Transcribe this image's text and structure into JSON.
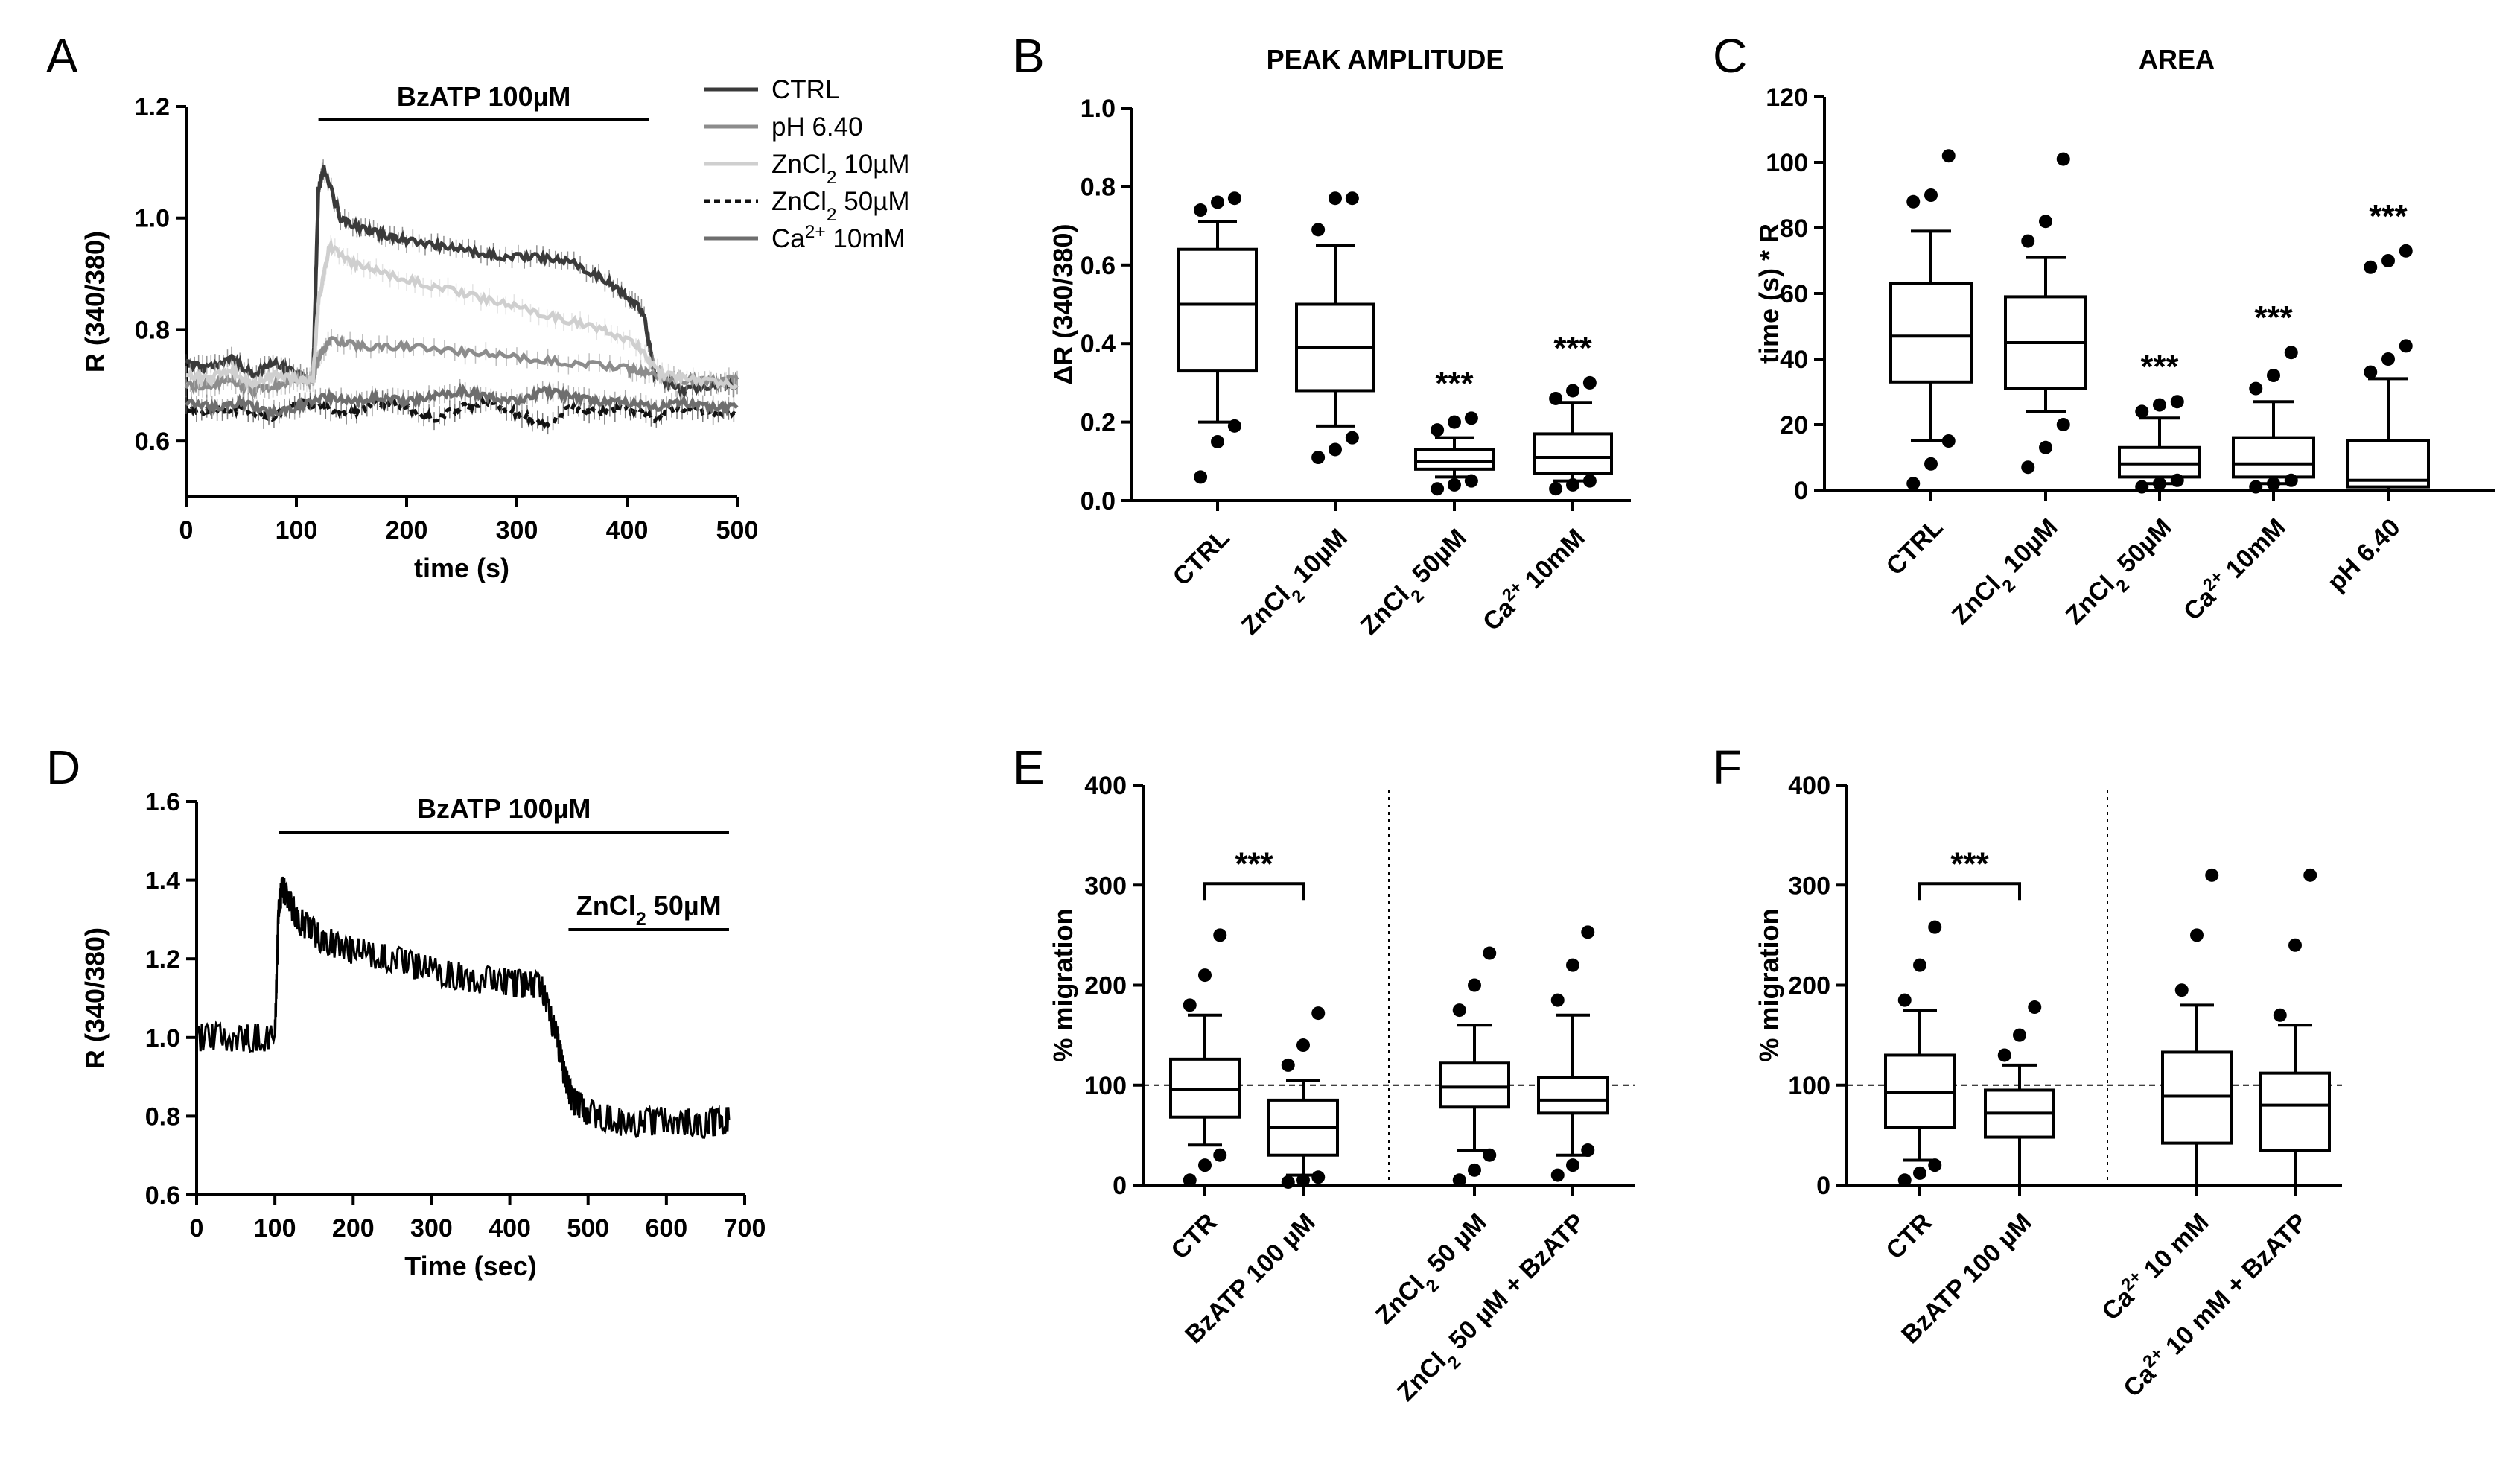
{
  "chart_data": [
    {
      "panel": "A",
      "type": "line",
      "xlabel": "time (s)",
      "ylabel": "R (340/380)",
      "xlim": [
        0,
        500
      ],
      "ylim": [
        0.5,
        1.2
      ],
      "xticks": [
        "0",
        "100",
        "200",
        "300",
        "400",
        "500"
      ],
      "yticks": [
        "0.6",
        "0.8",
        "1.0",
        "1.2"
      ],
      "annotation": "BzATP 100µM",
      "annotation_range": [
        120,
        420
      ],
      "legend": [
        "CTRL",
        "pH 6.40",
        "ZnCl2 10µM",
        "ZnCl2 50µM",
        "Ca2+ 10mM"
      ],
      "series": [
        {
          "name": "CTRL",
          "color": "#3a3a3a",
          "x": [
            0,
            20,
            40,
            60,
            80,
            100,
            115,
            120,
            125,
            140,
            160,
            180,
            200,
            230,
            260,
            290,
            320,
            350,
            380,
            400,
            415,
            425,
            450,
            480,
            500
          ],
          "y": [
            0.74,
            0.73,
            0.75,
            0.72,
            0.74,
            0.72,
            0.71,
            1.05,
            1.09,
            1.0,
            0.98,
            0.97,
            0.96,
            0.95,
            0.94,
            0.93,
            0.93,
            0.92,
            0.89,
            0.86,
            0.83,
            0.72,
            0.69,
            0.7,
            0.7
          ]
        },
        {
          "name": "pH 6.40",
          "color": "#8c8c8c",
          "x": [
            0,
            20,
            40,
            60,
            80,
            100,
            115,
            120,
            130,
            160,
            200,
            250,
            300,
            350,
            400,
            420,
            450,
            480,
            500
          ],
          "y": [
            0.7,
            0.7,
            0.71,
            0.69,
            0.7,
            0.71,
            0.71,
            0.75,
            0.78,
            0.77,
            0.77,
            0.76,
            0.75,
            0.74,
            0.73,
            0.72,
            0.71,
            0.71,
            0.71
          ]
        },
        {
          "name": "ZnCl2 10µM",
          "color": "#cfcfcf",
          "x": [
            0,
            20,
            40,
            60,
            80,
            100,
            115,
            120,
            130,
            150,
            180,
            220,
            260,
            300,
            340,
            380,
            410,
            430,
            460,
            500
          ],
          "y": [
            0.72,
            0.71,
            0.73,
            0.7,
            0.72,
            0.71,
            0.71,
            0.85,
            0.95,
            0.92,
            0.9,
            0.88,
            0.86,
            0.84,
            0.82,
            0.8,
            0.77,
            0.72,
            0.71,
            0.7
          ]
        },
        {
          "name": "ZnCl2 50µM",
          "color": "#111111",
          "dashed": true,
          "x": [
            0,
            25,
            50,
            75,
            100,
            125,
            150,
            175,
            200,
            225,
            250,
            275,
            300,
            325,
            350,
            375,
            400,
            425,
            450,
            475,
            500
          ],
          "y": [
            0.66,
            0.65,
            0.66,
            0.64,
            0.67,
            0.66,
            0.65,
            0.67,
            0.66,
            0.64,
            0.66,
            0.67,
            0.65,
            0.63,
            0.66,
            0.65,
            0.66,
            0.64,
            0.66,
            0.65,
            0.65
          ]
        },
        {
          "name": "Ca2+ 10mM",
          "color": "#6e6e6e",
          "x": [
            0,
            25,
            50,
            75,
            100,
            125,
            150,
            175,
            200,
            225,
            250,
            275,
            300,
            325,
            350,
            375,
            400,
            425,
            450,
            475,
            500
          ],
          "y": [
            0.67,
            0.66,
            0.67,
            0.65,
            0.66,
            0.68,
            0.67,
            0.68,
            0.67,
            0.68,
            0.69,
            0.68,
            0.67,
            0.69,
            0.68,
            0.67,
            0.67,
            0.66,
            0.67,
            0.66,
            0.66
          ]
        }
      ]
    },
    {
      "panel": "B",
      "type": "box",
      "title": "PEAK AMPLITUDE",
      "ylabel": "ΔR (340/380)",
      "ylim": [
        0,
        1.0
      ],
      "yticks": [
        "0.0",
        "0.2",
        "0.4",
        "0.6",
        "0.8",
        "1.0"
      ],
      "categories": [
        "CTRL",
        "ZnCl2 10µM",
        "ZnCl2 50µM",
        "Ca2+ 10mM"
      ],
      "boxes": [
        {
          "min": 0.2,
          "q1": 0.33,
          "median": 0.5,
          "q3": 0.64,
          "max": 0.71,
          "outliers": [
            0.06,
            0.15,
            0.19,
            0.74,
            0.76,
            0.77
          ],
          "sig": ""
        },
        {
          "min": 0.19,
          "q1": 0.28,
          "median": 0.39,
          "q3": 0.5,
          "max": 0.65,
          "outliers": [
            0.11,
            0.13,
            0.16,
            0.69,
            0.77,
            0.77
          ],
          "sig": ""
        },
        {
          "min": 0.06,
          "q1": 0.08,
          "median": 0.1,
          "q3": 0.13,
          "max": 0.16,
          "outliers": [
            0.03,
            0.04,
            0.05,
            0.18,
            0.2,
            0.21
          ],
          "sig": "***"
        },
        {
          "min": 0.05,
          "q1": 0.07,
          "median": 0.11,
          "q3": 0.17,
          "max": 0.25,
          "outliers": [
            0.03,
            0.04,
            0.05,
            0.26,
            0.28,
            0.3
          ],
          "sig": "***"
        }
      ]
    },
    {
      "panel": "C",
      "type": "box",
      "title": "AREA",
      "ylabel": "time (s) * R",
      "ylim": [
        0,
        120
      ],
      "yticks": [
        "0",
        "20",
        "40",
        "60",
        "80",
        "100",
        "120"
      ],
      "categories": [
        "CTRL",
        "ZnCl2 10µM",
        "ZnCl2 50µM",
        "Ca2+ 10mM",
        "pH 6.40"
      ],
      "boxes": [
        {
          "min": 15,
          "q1": 33,
          "median": 47,
          "q3": 63,
          "max": 79,
          "outliers": [
            2,
            8,
            15,
            88,
            90,
            102
          ],
          "sig": ""
        },
        {
          "min": 24,
          "q1": 31,
          "median": 45,
          "q3": 59,
          "max": 71,
          "outliers": [
            7,
            13,
            20,
            76,
            82,
            101
          ],
          "sig": ""
        },
        {
          "min": 2,
          "q1": 4,
          "median": 8,
          "q3": 13,
          "max": 22,
          "outliers": [
            1,
            2,
            3,
            24,
            26,
            27
          ],
          "sig": "***"
        },
        {
          "min": 2,
          "q1": 4,
          "median": 8,
          "q3": 16,
          "max": 27,
          "outliers": [
            1,
            2,
            3,
            31,
            35,
            42
          ],
          "sig": "***"
        },
        {
          "min": 0,
          "q1": 1,
          "median": 3,
          "q3": 15,
          "max": 34,
          "outliers": [
            36,
            40,
            44,
            68,
            70,
            73
          ],
          "sig": "***"
        }
      ]
    },
    {
      "panel": "D",
      "type": "line",
      "xlabel": "Time (sec)",
      "ylabel": "R (340/380)",
      "xlim": [
        0,
        700
      ],
      "ylim": [
        0.6,
        1.6
      ],
      "xticks": [
        "0",
        "100",
        "200",
        "300",
        "400",
        "500",
        "600",
        "700"
      ],
      "yticks": [
        "0.6",
        "0.8",
        "1.0",
        "1.2",
        "1.4",
        "1.6"
      ],
      "annotations": [
        {
          "label": "BzATP 100µM",
          "range": [
            105,
            680
          ]
        },
        {
          "label": "ZnCl2 50µM",
          "range": [
            475,
            680
          ]
        }
      ],
      "series": [
        {
          "name": "trace",
          "color": "#000000",
          "x": [
            0,
            50,
            100,
            105,
            110,
            130,
            160,
            200,
            250,
            300,
            350,
            400,
            440,
            460,
            470,
            480,
            500,
            550,
            600,
            650,
            680
          ],
          "y": [
            1.0,
            1.0,
            1.0,
            1.34,
            1.38,
            1.3,
            1.25,
            1.22,
            1.2,
            1.17,
            1.15,
            1.14,
            1.13,
            1.0,
            0.9,
            0.84,
            0.81,
            0.78,
            0.79,
            0.78,
            0.79
          ]
        }
      ]
    },
    {
      "panel": "E",
      "type": "box",
      "ylabel": "% migration",
      "ylim": [
        0,
        400
      ],
      "yticks": [
        "0",
        "100",
        "200",
        "300",
        "400"
      ],
      "reference_line": 100,
      "categories": [
        "CTR",
        "BzATP 100 µM",
        "ZnCl2 50 µM",
        "ZnCl2 50 µM + BzATP"
      ],
      "significance": "***",
      "boxes": [
        {
          "min": 40,
          "q1": 68,
          "median": 96,
          "q3": 126,
          "max": 170,
          "outliers": [
            5,
            20,
            30,
            180,
            210,
            250
          ],
          "sig": ""
        },
        {
          "min": 10,
          "q1": 30,
          "median": 58,
          "q3": 85,
          "max": 105,
          "outliers": [
            3,
            5,
            8,
            120,
            140,
            172
          ],
          "sig": ""
        },
        {
          "min": 35,
          "q1": 78,
          "median": 98,
          "q3": 122,
          "max": 160,
          "outliers": [
            5,
            15,
            30,
            175,
            200,
            232
          ],
          "sig": ""
        },
        {
          "min": 30,
          "q1": 72,
          "median": 85,
          "q3": 108,
          "max": 170,
          "outliers": [
            10,
            20,
            35,
            185,
            220,
            253
          ],
          "sig": ""
        }
      ]
    },
    {
      "panel": "F",
      "type": "box",
      "ylabel": "% migration",
      "ylim": [
        0,
        400
      ],
      "yticks": [
        "0",
        "100",
        "200",
        "300",
        "400"
      ],
      "reference_line": 100,
      "categories": [
        "CTR",
        "BzATP 100 µM",
        "Ca2+ 10 mM",
        "Ca2+ 10 mM + BzATP"
      ],
      "significance": "***",
      "boxes": [
        {
          "min": 25,
          "q1": 58,
          "median": 93,
          "q3": 130,
          "max": 175,
          "outliers": [
            5,
            12,
            20,
            185,
            220,
            258
          ],
          "sig": ""
        },
        {
          "min": 0,
          "q1": 48,
          "median": 72,
          "q3": 95,
          "max": 120,
          "outliers": [
            130,
            150,
            178
          ],
          "sig": ""
        },
        {
          "min": 0,
          "q1": 42,
          "median": 89,
          "q3": 133,
          "max": 180,
          "outliers": [
            195,
            250,
            310
          ],
          "sig": ""
        },
        {
          "min": 0,
          "q1": 35,
          "median": 80,
          "q3": 112,
          "max": 160,
          "outliers": [
            170,
            240,
            310
          ],
          "sig": ""
        }
      ]
    }
  ],
  "panel_labels": [
    "A",
    "B",
    "C",
    "D",
    "E",
    "F"
  ]
}
